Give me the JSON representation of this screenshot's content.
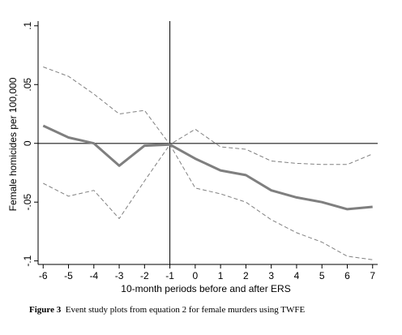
{
  "caption": {
    "label": "Figure 3",
    "text": "Event study plots from equation 2 for female murders using TWFE"
  },
  "chart_data": {
    "type": "line",
    "title": "",
    "xlabel": "10-month periods before and after ERS",
    "ylabel": "Female homicides per 100,000",
    "x": [
      -6,
      -5,
      -4,
      -3,
      -2,
      -1,
      0,
      1,
      2,
      3,
      4,
      5,
      6,
      7
    ],
    "xticks": [
      "-6",
      "-5",
      "-4",
      "-3",
      "-2",
      "-1",
      "0",
      "1",
      "2",
      "3",
      "4",
      "5",
      "6",
      "7"
    ],
    "yticks": [
      {
        "value": -0.1,
        "label": "-.1"
      },
      {
        "value": -0.05,
        "label": "-.05"
      },
      {
        "value": 0,
        "label": "0"
      },
      {
        "value": 0.05,
        "label": ".05"
      },
      {
        "value": 0.1,
        "label": ".1"
      }
    ],
    "xlim": [
      -6.2,
      7.2
    ],
    "ylim": [
      -0.103,
      0.104
    ],
    "reference_lines": {
      "y": 0,
      "x": -1
    },
    "grid": false,
    "legend": "none",
    "series": [
      {
        "role": "estimate",
        "color": "#7f7f7f",
        "values": [
          0.015,
          0.005,
          0.0,
          -0.019,
          -0.002,
          -0.001,
          -0.013,
          -0.023,
          -0.027,
          -0.04,
          -0.046,
          -0.05,
          -0.056,
          -0.054
        ]
      },
      {
        "role": "ci_upper",
        "color": "#808080",
        "values": [
          0.065,
          0.057,
          0.042,
          0.025,
          0.028,
          -0.001,
          0.012,
          -0.003,
          -0.005,
          -0.015,
          -0.017,
          -0.018,
          -0.018,
          -0.009
        ]
      },
      {
        "role": "ci_lower",
        "color": "#808080",
        "values": [
          -0.034,
          -0.045,
          -0.04,
          -0.064,
          -0.032,
          -0.001,
          -0.038,
          -0.043,
          -0.05,
          -0.065,
          -0.076,
          -0.084,
          -0.096,
          -0.099
        ]
      }
    ]
  }
}
